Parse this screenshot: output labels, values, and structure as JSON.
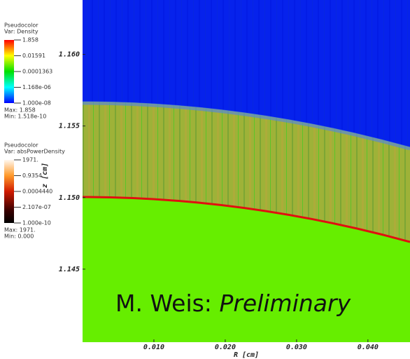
{
  "chart_data": {
    "type": "pseudocolor",
    "x_label": "R [cm]",
    "y_label": "z [cm]",
    "xlim": [
      0,
      0.0459
    ],
    "ylim": [
      1.1399,
      1.1638
    ],
    "xticks": [
      {
        "value": 0.01,
        "label": "0.010"
      },
      {
        "value": 0.02,
        "label": "0.020"
      },
      {
        "value": 0.03,
        "label": "0.030"
      },
      {
        "value": 0.04,
        "label": "0.040"
      }
    ],
    "yticks": [
      {
        "value": 1.145,
        "label": "1.145"
      },
      {
        "value": 1.15,
        "label": "1.150"
      },
      {
        "value": 1.155,
        "label": "1.155"
      },
      {
        "value": 1.16,
        "label": "1.160"
      }
    ],
    "annotation": {
      "author": "M. Weis:",
      "status": "Preliminary"
    },
    "legends": [
      {
        "plot": "Pseudocolor",
        "var": "Var: Density",
        "labels": [
          "1.858",
          "0.01591",
          "0.0001363",
          "1.168e-06",
          "1.000e-08"
        ],
        "max": "Max: 1.858",
        "min": "Min: 1.518e-10"
      },
      {
        "plot": "Pseudocolor",
        "var": "Var: absPowerDensity",
        "labels": [
          "1971.",
          "0.9354",
          "0.0004440",
          "2.107e-07",
          "1.000e-10"
        ],
        "max": "Max: 1971.",
        "min": "Min: 0.000"
      }
    ]
  }
}
